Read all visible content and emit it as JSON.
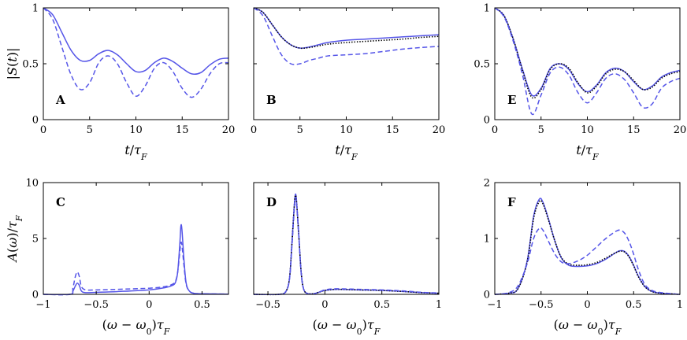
{
  "colors": {
    "blue": "#5555e8",
    "black": "#000000",
    "ref": "#888888"
  },
  "chart_data": [
    {
      "id": "A",
      "type": "line",
      "panel_label": "A",
      "xlim": [
        0,
        20
      ],
      "ylim": [
        0,
        1
      ],
      "xticks": [
        0,
        5,
        10,
        15,
        20
      ],
      "xtick_labels": [
        "0",
        "5",
        "10",
        "15",
        "20"
      ],
      "yticks": [
        0,
        0.5,
        1
      ],
      "ytick_labels": [
        "0",
        "0.5",
        "1"
      ],
      "xlabel": "t/τF",
      "ylabel": "|S(t)|",
      "series": [
        {
          "name": "solid",
          "style": "solid",
          "color": "blue",
          "x": [
            0,
            1,
            2,
            3,
            4,
            5,
            6,
            7,
            8,
            9,
            10,
            11,
            12,
            13,
            14,
            15,
            16,
            17,
            18,
            19,
            20
          ],
          "y": [
            1.0,
            0.94,
            0.78,
            0.62,
            0.53,
            0.53,
            0.59,
            0.62,
            0.58,
            0.5,
            0.43,
            0.44,
            0.51,
            0.55,
            0.52,
            0.46,
            0.41,
            0.42,
            0.49,
            0.54,
            0.55
          ]
        },
        {
          "name": "dashed",
          "style": "dashed",
          "color": "blue",
          "x": [
            0,
            1,
            2,
            3,
            4,
            5,
            6,
            7,
            8,
            9,
            10,
            11,
            12,
            13,
            14,
            15,
            16,
            17,
            18,
            19,
            20
          ],
          "y": [
            1.0,
            0.9,
            0.65,
            0.4,
            0.27,
            0.33,
            0.51,
            0.57,
            0.5,
            0.33,
            0.21,
            0.3,
            0.46,
            0.51,
            0.43,
            0.28,
            0.2,
            0.27,
            0.41,
            0.5,
            0.51
          ]
        }
      ]
    },
    {
      "id": "B",
      "type": "line",
      "panel_label": "B",
      "xlim": [
        0,
        20
      ],
      "ylim": [
        0,
        1
      ],
      "xticks": [
        0,
        5,
        10,
        15,
        20
      ],
      "xtick_labels": [
        "0",
        "5",
        "10",
        "15",
        "20"
      ],
      "yticks": [
        0,
        0.5,
        1
      ],
      "ytick_labels": [],
      "xlabel": "t/τF",
      "ylabel": "",
      "series": [
        {
          "name": "solid",
          "style": "solid",
          "color": "blue",
          "x": [
            0,
            1,
            2,
            3,
            4,
            5,
            6,
            7,
            8,
            10,
            12,
            14,
            16,
            18,
            20
          ],
          "y": [
            1.0,
            0.96,
            0.85,
            0.74,
            0.67,
            0.64,
            0.65,
            0.67,
            0.69,
            0.71,
            0.72,
            0.73,
            0.74,
            0.75,
            0.76
          ]
        },
        {
          "name": "dotted",
          "style": "dotted",
          "color": "black",
          "x": [
            0,
            1,
            2,
            3,
            4,
            5,
            6,
            7,
            8,
            10,
            12,
            14,
            16,
            18,
            20
          ],
          "y": [
            1.0,
            0.96,
            0.85,
            0.74,
            0.67,
            0.64,
            0.645,
            0.66,
            0.675,
            0.69,
            0.7,
            0.71,
            0.72,
            0.735,
            0.745
          ]
        },
        {
          "name": "dashed",
          "style": "dashed",
          "color": "blue",
          "x": [
            0,
            1,
            2,
            3,
            4,
            5,
            6,
            7,
            8,
            10,
            12,
            14,
            16,
            18,
            20
          ],
          "y": [
            1.0,
            0.93,
            0.75,
            0.58,
            0.5,
            0.5,
            0.53,
            0.55,
            0.57,
            0.58,
            0.59,
            0.61,
            0.63,
            0.645,
            0.655
          ]
        }
      ]
    },
    {
      "id": "E",
      "type": "line",
      "panel_label": "E",
      "xlim": [
        0,
        20
      ],
      "ylim": [
        0,
        1
      ],
      "xticks": [
        0,
        5,
        10,
        15,
        20
      ],
      "xtick_labels": [
        "0",
        "5",
        "10",
        "15",
        "20"
      ],
      "yticks": [
        0,
        0.5,
        1
      ],
      "ytick_labels": [
        "0",
        "0.5",
        "1"
      ],
      "xlabel": "t/τF",
      "ylabel": "",
      "series": [
        {
          "name": "solid",
          "style": "solid",
          "color": "blue",
          "x": [
            0,
            1,
            2,
            3,
            4,
            5,
            6,
            7,
            8,
            9,
            10,
            11,
            12,
            13,
            14,
            15,
            16,
            17,
            18,
            19,
            20
          ],
          "y": [
            1.0,
            0.93,
            0.72,
            0.45,
            0.22,
            0.28,
            0.46,
            0.5,
            0.45,
            0.32,
            0.25,
            0.31,
            0.42,
            0.46,
            0.43,
            0.34,
            0.27,
            0.3,
            0.38,
            0.42,
            0.44
          ]
        },
        {
          "name": "dotted",
          "style": "dotted",
          "color": "black",
          "x": [
            0,
            1,
            2,
            3,
            4,
            5,
            6,
            7,
            8,
            9,
            10,
            11,
            12,
            13,
            14,
            15,
            16,
            17,
            18,
            19,
            20
          ],
          "y": [
            1.0,
            0.93,
            0.72,
            0.44,
            0.2,
            0.27,
            0.45,
            0.5,
            0.46,
            0.33,
            0.24,
            0.3,
            0.41,
            0.45,
            0.43,
            0.35,
            0.27,
            0.29,
            0.37,
            0.41,
            0.43
          ]
        },
        {
          "name": "dashed",
          "style": "dashed",
          "color": "blue",
          "x": [
            0,
            1,
            2,
            3,
            4,
            5,
            6,
            7,
            8,
            9,
            10,
            11,
            12,
            13,
            14,
            15,
            16,
            17,
            18,
            19,
            20
          ],
          "y": [
            1.0,
            0.92,
            0.7,
            0.4,
            0.05,
            0.22,
            0.42,
            0.47,
            0.4,
            0.24,
            0.15,
            0.24,
            0.37,
            0.41,
            0.36,
            0.24,
            0.11,
            0.14,
            0.28,
            0.34,
            0.37
          ]
        }
      ]
    },
    {
      "id": "C",
      "type": "line",
      "panel_label": "C",
      "xlim": [
        -1,
        0.75
      ],
      "ylim": [
        0,
        10
      ],
      "xticks": [
        -1,
        -0.5,
        0,
        0.5
      ],
      "xtick_labels": [
        "−1",
        "−0.5",
        "0",
        "0.5"
      ],
      "yticks": [
        0,
        5,
        10
      ],
      "ytick_labels": [
        "0",
        "5",
        "10"
      ],
      "xlabel": "(ω − ω0)τF",
      "ylabel": "A(ω)/τF",
      "reference_line": 0,
      "series": [
        {
          "name": "solid",
          "style": "solid",
          "color": "blue",
          "x": [
            -1.0,
            -0.75,
            -0.72,
            -0.7,
            -0.68,
            -0.66,
            -0.64,
            -0.6,
            -0.5,
            -0.3,
            0.0,
            0.15,
            0.22,
            0.25,
            0.27,
            0.29,
            0.3,
            0.31,
            0.33,
            0.35,
            0.38,
            0.42,
            0.5,
            0.75
          ],
          "y": [
            0.0,
            0.0,
            0.3,
            0.7,
            1.0,
            0.8,
            0.3,
            0.15,
            0.18,
            0.25,
            0.4,
            0.6,
            0.8,
            1.1,
            2.0,
            4.5,
            6.1,
            5.8,
            3.0,
            1.0,
            0.3,
            0.1,
            0.05,
            0.02
          ]
        },
        {
          "name": "dashed",
          "style": "dashed",
          "color": "blue",
          "x": [
            -1.0,
            -0.75,
            -0.72,
            -0.7,
            -0.68,
            -0.66,
            -0.64,
            -0.6,
            -0.5,
            -0.3,
            0.0,
            0.15,
            0.22,
            0.25,
            0.27,
            0.29,
            0.3,
            0.31,
            0.33,
            0.35,
            0.38,
            0.42,
            0.5,
            0.75
          ],
          "y": [
            0.0,
            0.0,
            0.6,
            1.5,
            2.0,
            1.6,
            0.7,
            0.4,
            0.4,
            0.45,
            0.55,
            0.7,
            0.9,
            1.2,
            2.0,
            3.8,
            4.6,
            4.4,
            2.5,
            0.9,
            0.3,
            0.1,
            0.05,
            0.02
          ]
        }
      ]
    },
    {
      "id": "D",
      "type": "line",
      "panel_label": "D",
      "xlim": [
        -0.625,
        1
      ],
      "ylim": [
        0,
        10
      ],
      "xticks": [
        -0.5,
        0,
        0.5,
        1
      ],
      "xtick_labels": [
        "−0.5",
        "0",
        "0.5",
        "1"
      ],
      "yticks": [
        0,
        5,
        10
      ],
      "ytick_labels": [],
      "xlabel": "(ω − ω0)τF",
      "ylabel": "",
      "reference_line": 0,
      "series": [
        {
          "name": "solid",
          "style": "solid",
          "color": "blue",
          "x": [
            -0.625,
            -0.4,
            -0.34,
            -0.31,
            -0.29,
            -0.27,
            -0.26,
            -0.25,
            -0.23,
            -0.21,
            -0.19,
            -0.16,
            -0.1,
            -0.05,
            0.0,
            0.1,
            0.3,
            0.5,
            0.7,
            0.85,
            1.0
          ],
          "y": [
            0.0,
            0.0,
            0.3,
            1.5,
            4.5,
            7.8,
            8.9,
            8.5,
            5.5,
            2.2,
            0.6,
            0.1,
            0.05,
            0.2,
            0.35,
            0.45,
            0.4,
            0.35,
            0.25,
            0.15,
            0.1
          ]
        },
        {
          "name": "dotted",
          "style": "dotted",
          "color": "black",
          "x": [
            -0.625,
            -0.4,
            -0.34,
            -0.31,
            -0.29,
            -0.27,
            -0.26,
            -0.25,
            -0.23,
            -0.21,
            -0.19,
            -0.16,
            -0.1,
            -0.05,
            0.0,
            0.1,
            0.3,
            0.5,
            0.7,
            0.85,
            1.0
          ],
          "y": [
            0.0,
            0.0,
            0.3,
            1.5,
            4.4,
            7.7,
            8.8,
            8.4,
            5.4,
            2.2,
            0.6,
            0.1,
            0.05,
            0.2,
            0.35,
            0.45,
            0.4,
            0.35,
            0.25,
            0.15,
            0.1
          ]
        },
        {
          "name": "dashed",
          "style": "dashed",
          "color": "blue",
          "x": [
            -0.625,
            -0.4,
            -0.34,
            -0.31,
            -0.29,
            -0.27,
            -0.26,
            -0.25,
            -0.23,
            -0.21,
            -0.19,
            -0.16,
            -0.1,
            -0.05,
            0.0,
            0.1,
            0.3,
            0.5,
            0.7,
            0.85,
            1.0
          ],
          "y": [
            0.0,
            0.0,
            0.3,
            1.4,
            4.2,
            7.4,
            8.6,
            8.2,
            5.3,
            2.1,
            0.6,
            0.1,
            0.05,
            0.2,
            0.4,
            0.5,
            0.45,
            0.4,
            0.3,
            0.18,
            0.12
          ]
        }
      ]
    },
    {
      "id": "F",
      "type": "line",
      "panel_label": "F",
      "xlim": [
        -1,
        1
      ],
      "ylim": [
        0,
        2
      ],
      "xticks": [
        -1,
        -0.5,
        0,
        0.5,
        1
      ],
      "xtick_labels": [
        "−1",
        "−0.5",
        "0",
        "0.5",
        "1"
      ],
      "yticks": [
        0,
        1,
        2
      ],
      "ytick_labels": [
        "0",
        "1",
        "2"
      ],
      "xlabel": "(ω − ω0)τF",
      "ylabel": "",
      "reference_line": 0,
      "series": [
        {
          "name": "solid",
          "style": "solid",
          "color": "blue",
          "x": [
            -1.0,
            -0.85,
            -0.75,
            -0.65,
            -0.58,
            -0.52,
            -0.48,
            -0.42,
            -0.35,
            -0.28,
            -0.2,
            -0.1,
            0.0,
            0.1,
            0.2,
            0.3,
            0.35,
            0.4,
            0.45,
            0.5,
            0.55,
            0.62,
            0.7,
            0.8,
            1.0
          ],
          "y": [
            0.0,
            0.02,
            0.1,
            0.6,
            1.4,
            1.7,
            1.65,
            1.35,
            0.95,
            0.65,
            0.52,
            0.5,
            0.51,
            0.55,
            0.63,
            0.74,
            0.78,
            0.77,
            0.68,
            0.52,
            0.33,
            0.14,
            0.05,
            0.02,
            0.0
          ]
        },
        {
          "name": "dotted",
          "style": "dotted",
          "color": "black",
          "x": [
            -1.0,
            -0.85,
            -0.75,
            -0.65,
            -0.58,
            -0.52,
            -0.48,
            -0.42,
            -0.35,
            -0.28,
            -0.2,
            -0.1,
            0.0,
            0.1,
            0.2,
            0.3,
            0.35,
            0.4,
            0.45,
            0.5,
            0.55,
            0.62,
            0.7,
            0.8,
            1.0
          ],
          "y": [
            0.0,
            0.02,
            0.1,
            0.58,
            1.36,
            1.66,
            1.62,
            1.33,
            0.95,
            0.66,
            0.54,
            0.52,
            0.53,
            0.57,
            0.65,
            0.74,
            0.77,
            0.76,
            0.67,
            0.51,
            0.32,
            0.14,
            0.05,
            0.02,
            0.0
          ]
        },
        {
          "name": "dashed",
          "style": "dashed",
          "color": "blue",
          "x": [
            -1.0,
            -0.85,
            -0.75,
            -0.65,
            -0.58,
            -0.52,
            -0.48,
            -0.42,
            -0.35,
            -0.28,
            -0.2,
            -0.1,
            0.0,
            0.1,
            0.2,
            0.3,
            0.35,
            0.4,
            0.45,
            0.5,
            0.55,
            0.62,
            0.7,
            0.8,
            1.0
          ],
          "y": [
            0.0,
            0.03,
            0.15,
            0.55,
            1.0,
            1.18,
            1.15,
            0.95,
            0.72,
            0.58,
            0.55,
            0.6,
            0.7,
            0.85,
            1.0,
            1.12,
            1.15,
            1.1,
            0.95,
            0.72,
            0.45,
            0.18,
            0.07,
            0.03,
            0.0
          ]
        }
      ]
    }
  ]
}
